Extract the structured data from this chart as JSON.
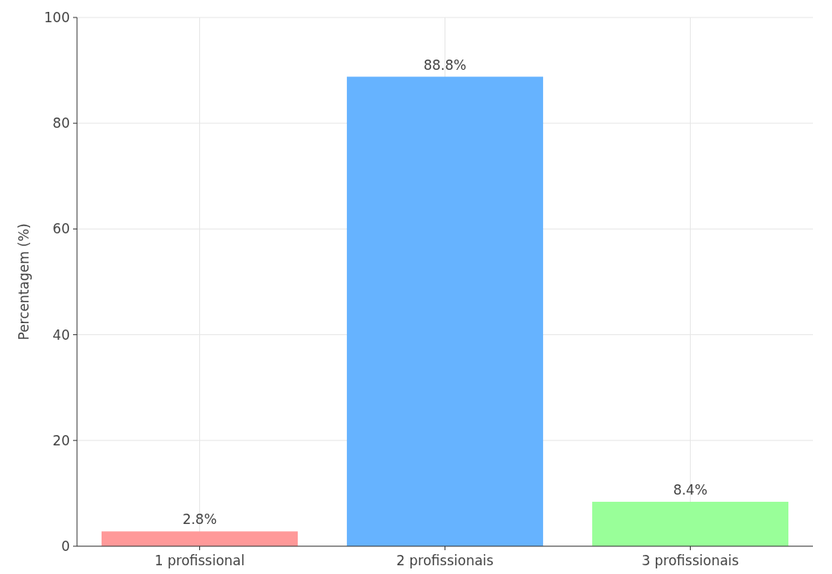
{
  "chart_data": {
    "type": "bar",
    "ylabel": "Percentagem (%)",
    "categories": [
      "1 profissional",
      "2 profissionais",
      "3 profissionais"
    ],
    "values": [
      2.8,
      88.8,
      8.4
    ],
    "colors": [
      "#ff9999",
      "#66b3ff",
      "#99ff99"
    ],
    "value_labels": [
      "2.8%",
      "88.8%",
      "8.4%"
    ],
    "ylim": [
      0,
      100
    ],
    "yticks": [
      0,
      20,
      40,
      60,
      80,
      100
    ],
    "grid": true
  }
}
